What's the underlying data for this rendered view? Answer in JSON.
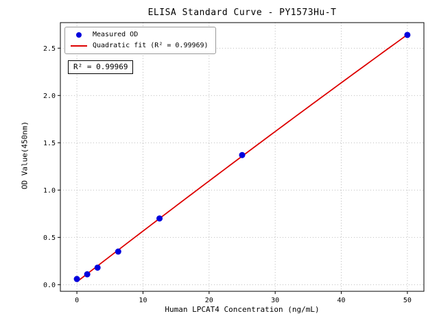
{
  "figure": {
    "title": "ELISA Standard Curve - PY1573Hu-T"
  },
  "chart_data": {
    "type": "scatter",
    "title": "ELISA Standard Curve - PY1573Hu-T",
    "xlabel": "Human LPCAT4 Concentration (ng/mL)",
    "ylabel": "OD Value(450nm)",
    "xlim": [
      -2.5,
      52.5
    ],
    "ylim": [
      -0.07,
      2.77
    ],
    "x_ticks": [
      0,
      10,
      20,
      30,
      40,
      50
    ],
    "y_ticks": [
      0,
      0.5,
      1,
      1.5,
      2,
      2.5
    ],
    "grid": true,
    "grid_style": "dotted",
    "legend_position": "upper left",
    "annotation": "R² = 0.99969",
    "series": [
      {
        "name": "Measured OD",
        "type": "scatter",
        "color": "#0000dd",
        "x": [
          0,
          1.563,
          3.125,
          6.25,
          12.5,
          25,
          50
        ],
        "y": [
          0.06,
          0.11,
          0.18,
          0.35,
          0.7,
          1.37,
          2.64
        ]
      },
      {
        "name": "Quadratic fit (R² = 0.99969)",
        "type": "quadratic-fit",
        "color": "#dd0000",
        "fit_of": "Measured OD",
        "r_squared": 0.99969,
        "x_range": [
          0,
          50
        ]
      }
    ]
  }
}
